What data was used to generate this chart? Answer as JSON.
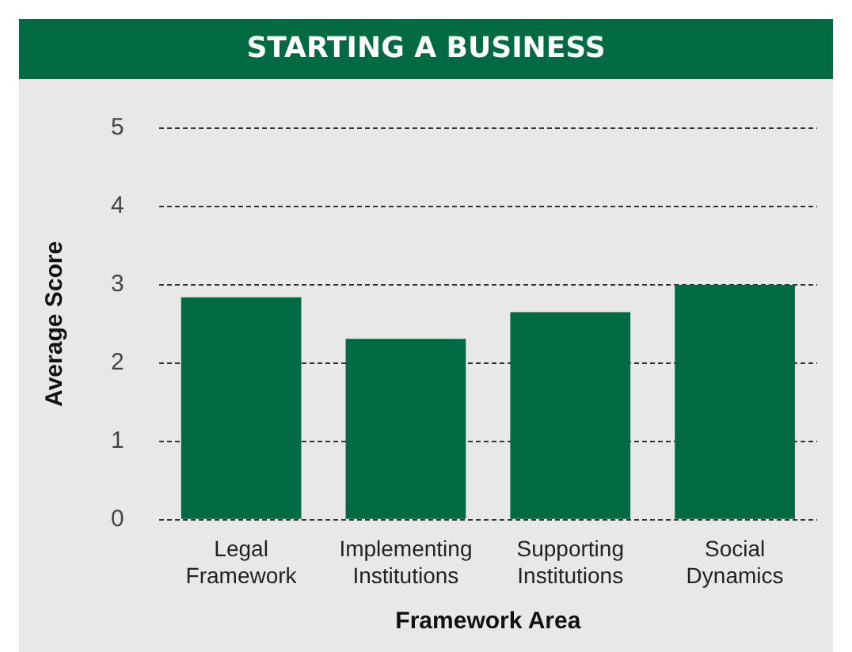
{
  "chart_data": {
    "type": "bar",
    "title": "STARTING A BUSINESS",
    "xlabel": "Framework Area",
    "ylabel": "Average Score",
    "categories": [
      "Legal Framework",
      "Implementing Institutions",
      "Supporting Institutions",
      "Social Dynamics"
    ],
    "values": [
      2.84,
      2.31,
      2.65,
      3.0
    ],
    "color": "#006b42",
    "ylim": [
      0,
      5
    ],
    "yticks": [
      0,
      1,
      2,
      3,
      4,
      5
    ],
    "grid": "y"
  }
}
